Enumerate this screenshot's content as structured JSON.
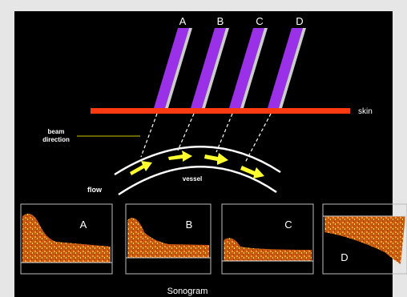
{
  "probes": {
    "labels": [
      "A",
      "B",
      "C",
      "D"
    ]
  },
  "skin": "skin",
  "beam_direction": "beam direction",
  "flow": "flow",
  "vessel": "vessel",
  "sonograms": {
    "labels": [
      "A",
      "B",
      "C",
      "D"
    ]
  },
  "caption": "Sonogram"
}
